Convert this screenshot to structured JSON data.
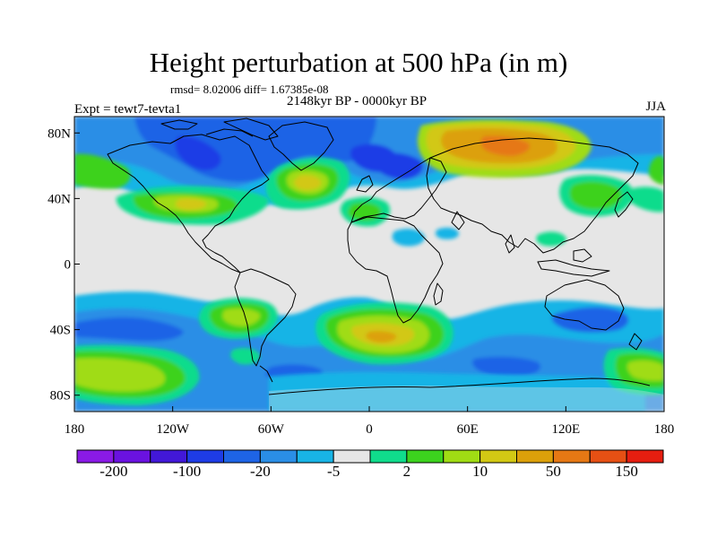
{
  "title": "Height perturbation at 500 hPa (in m)",
  "stats_line": "rmsd= 8.02006 diff= 1.67385e-08",
  "subtitle": "2148kyr BP - 0000kyr BP",
  "experiment": "Expt = tewt7-tevta1",
  "season": "JJA",
  "lat_ticks": [
    "80N",
    "40N",
    "0",
    "40S",
    "80S"
  ],
  "lon_ticks": [
    "180",
    "120W",
    "60W",
    "0",
    "60E",
    "120E",
    "180"
  ],
  "colorbar": {
    "colors": [
      "#8a1ae6",
      "#6a12e0",
      "#4218d8",
      "#1e3ce6",
      "#1e64e6",
      "#2a8ee6",
      "#18b4e6",
      "#e6e6e6",
      "#10dc8c",
      "#3cd21e",
      "#a0dc14",
      "#d2c814",
      "#dca00a",
      "#e67814",
      "#e65014",
      "#e61e10"
    ],
    "tick_labels": [
      "-200",
      "-100",
      "-20",
      "-5",
      "2",
      "10",
      "50",
      "150"
    ]
  }
}
